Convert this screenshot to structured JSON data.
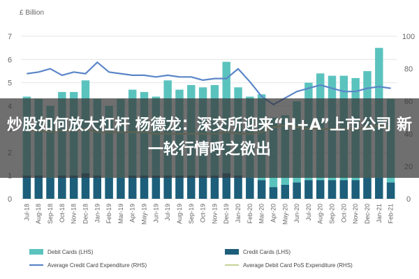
{
  "overlay_title": "炒股如何放大杠杆 杨德龙：深交所迎来“H+A”上市公司 新一轮行情呼之欲出",
  "colors": {
    "debit_bar": "#5bc3be",
    "credit_bar": "#1d5e7a",
    "avg_credit_line": "#5b86c8",
    "avg_debit_line": "#c7d49a",
    "grid": "#e4e4e4",
    "banner": "#373737"
  },
  "chart_data": {
    "type": "bar",
    "left_unit_label": "£ Billion",
    "categories": [
      "Jul-18",
      "Aug-18",
      "Sep-18",
      "Oct-18",
      "Nov-18",
      "Dec-18",
      "Jan-19",
      "Feb-19",
      "Mar-19",
      "Apr-19",
      "May-19",
      "Jun-19",
      "Jul-19",
      "Aug-19",
      "Sep-19",
      "Oct-19",
      "Nov-19",
      "Dec-19",
      "Jan-20",
      "Feb-20",
      "Mar-20",
      "Apr-20",
      "May-20",
      "Jun-20",
      "Jul-20",
      "Aug-20",
      "Sep-20",
      "Oct-20",
      "Nov-20",
      "Dec-20",
      "Jan-21",
      "Feb-21"
    ],
    "y_left": {
      "ticks": [
        0,
        1,
        2,
        3,
        4,
        5,
        6,
        7
      ],
      "range": [
        0,
        7
      ]
    },
    "y_right": {
      "ticks": [
        0,
        20,
        40,
        60,
        80,
        100
      ],
      "range": [
        0,
        100
      ]
    },
    "grid": true,
    "legend_position": "bottom",
    "series": [
      {
        "name": "Debit Cards (LHS)",
        "axis": "left",
        "kind": "bar",
        "values": [
          4.4,
          4.3,
          4.0,
          4.6,
          4.6,
          5.1,
          4.3,
          4.0,
          4.3,
          4.7,
          4.6,
          4.4,
          5.1,
          4.7,
          4.9,
          4.8,
          4.9,
          5.9,
          4.8,
          4.4,
          4.5,
          3.5,
          3.6,
          4.2,
          5.0,
          5.4,
          5.3,
          5.3,
          5.2,
          5.5,
          6.5,
          4.3
        ]
      },
      {
        "name": "Credit Cards (LHS)",
        "axis": "left",
        "kind": "bar",
        "values": [
          1.0,
          1.0,
          0.9,
          1.0,
          1.0,
          1.1,
          1.0,
          0.9,
          0.9,
          1.0,
          1.0,
          1.0,
          1.0,
          1.0,
          1.0,
          1.0,
          1.0,
          1.1,
          1.0,
          0.9,
          0.8,
          0.5,
          0.6,
          0.7,
          0.8,
          0.8,
          0.8,
          0.8,
          0.8,
          0.9,
          0.9,
          0.7
        ]
      },
      {
        "name": "Average Credit Card Expenditure (RHS)",
        "axis": "right",
        "kind": "line",
        "values": [
          77,
          78,
          80,
          76,
          78,
          77,
          84,
          78,
          77,
          76,
          76,
          75,
          76,
          75,
          75,
          73,
          74,
          74,
          80,
          72,
          63,
          58,
          62,
          66,
          68,
          70,
          68,
          66,
          66,
          68,
          69,
          68
        ]
      },
      {
        "name": "Average Debit Card PoS Expenditure (RHS)",
        "axis": "right",
        "kind": "line",
        "values": [
          42,
          42,
          41,
          42,
          42,
          43,
          41,
          41,
          41,
          41,
          41,
          40,
          40,
          40,
          40,
          40,
          40,
          41,
          40,
          40,
          41,
          44,
          45,
          44,
          43,
          43,
          43,
          43,
          43,
          44,
          45,
          43
        ]
      }
    ]
  }
}
